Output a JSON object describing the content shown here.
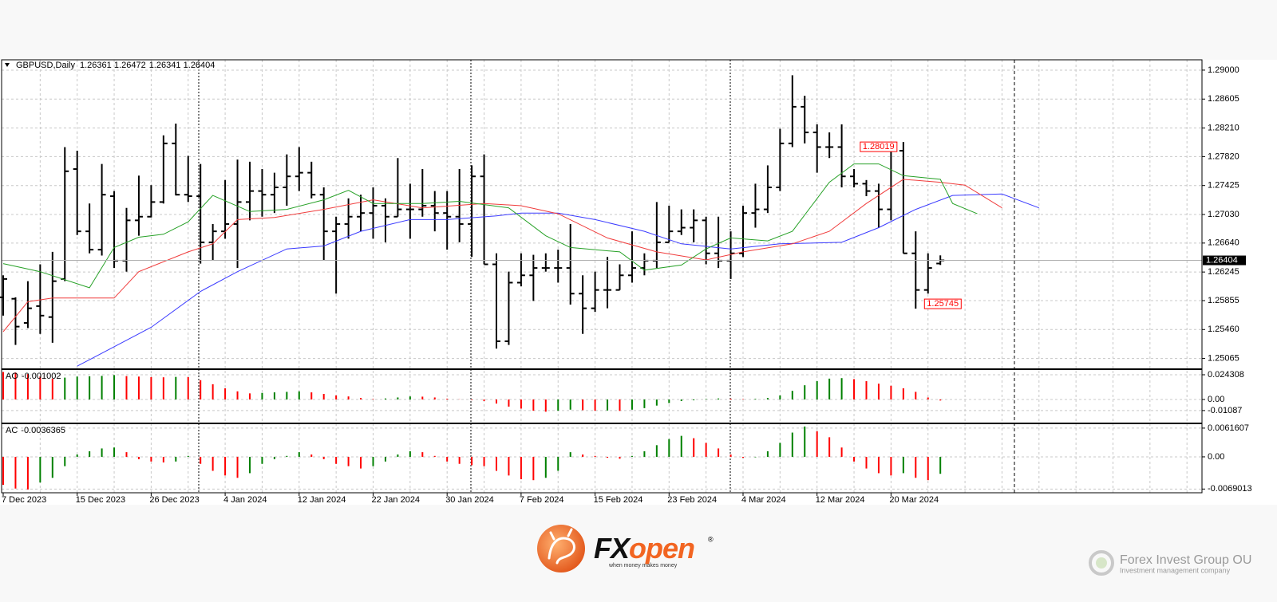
{
  "chart_data": [
    {
      "type": "ohlc",
      "title": "GBPUSD,Daily",
      "header_values": [
        1.26361,
        1.26472,
        1.26341,
        1.26404
      ],
      "color": "#000000",
      "categories": [
        "7 Dec 2023",
        null,
        null,
        null,
        null,
        null,
        "15 Dec 2023",
        null,
        null,
        null,
        null,
        null,
        "26 Dec 2023",
        null,
        null,
        null,
        null,
        null,
        "4 Jan 2024",
        null,
        null,
        null,
        null,
        null,
        "12 Jan 2024",
        null,
        null,
        null,
        null,
        null,
        "22 Jan 2024",
        null,
        null,
        null,
        null,
        null,
        "30 Jan 2024",
        null,
        null,
        null,
        null,
        null,
        "7 Feb 2024",
        null,
        null,
        null,
        null,
        null,
        "15 Feb 2024",
        null,
        null,
        null,
        null,
        null,
        "23 Feb 2024",
        null,
        null,
        null,
        null,
        null,
        "4 Mar 2024",
        null,
        null,
        null,
        null,
        null,
        "12 Mar 2024",
        null,
        null,
        null,
        null,
        null,
        "20 Mar 2024",
        null,
        null,
        null,
        null
      ],
      "open": [
        1.259,
        1.2588,
        1.2555,
        1.2578,
        1.2563,
        1.2615,
        1.2765,
        1.268,
        1.2655,
        1.2728,
        1.264,
        1.2695,
        1.27,
        1.272,
        1.28,
        1.273,
        1.2728,
        1.2665,
        1.268,
        1.269,
        1.272,
        1.2735,
        1.273,
        1.274,
        1.2755,
        1.276,
        1.273,
        1.268,
        1.269,
        1.27,
        1.2705,
        1.2715,
        1.27,
        1.271,
        1.271,
        1.2715,
        1.2705,
        1.27,
        1.269,
        1.2755,
        1.2635,
        1.253,
        1.261,
        1.262,
        1.263,
        1.263,
        1.263,
        1.2595,
        1.2575,
        1.26,
        1.26,
        1.262,
        1.263,
        1.264,
        1.2665,
        1.268,
        1.2685,
        1.2695,
        1.265,
        1.264,
        1.265,
        1.2705,
        1.271,
        1.274,
        1.28,
        1.285,
        1.2815,
        1.2795,
        1.2795,
        1.2755,
        1.2745,
        1.2735,
        1.271,
        1.279,
        1.265,
        1.26,
        1.26361
      ],
      "high": [
        1.262,
        1.259,
        1.2612,
        1.2635,
        1.2652,
        1.2795,
        1.279,
        1.2718,
        1.2772,
        1.2735,
        1.2712,
        1.2756,
        1.2743,
        1.2811,
        1.2827,
        1.2783,
        1.2772,
        1.269,
        1.275,
        1.2778,
        1.2775,
        1.2765,
        1.276,
        1.2785,
        1.2795,
        1.2775,
        1.274,
        1.27,
        1.2725,
        1.273,
        1.274,
        1.2725,
        1.278,
        1.2745,
        1.2765,
        1.2735,
        1.2735,
        1.2765,
        1.277,
        1.2785,
        1.265,
        1.2625,
        1.265,
        1.2648,
        1.265,
        1.2655,
        1.269,
        1.262,
        1.2625,
        1.2645,
        1.2635,
        1.268,
        1.265,
        1.272,
        1.2715,
        1.271,
        1.271,
        1.27,
        1.27,
        1.268,
        1.2715,
        1.2745,
        1.277,
        1.282,
        1.2893,
        1.2865,
        1.2826,
        1.2815,
        1.2826,
        1.2765,
        1.275,
        1.2745,
        1.28,
        1.28019,
        1.268,
        1.265,
        1.26472
      ],
      "low": [
        1.2565,
        1.2525,
        1.2548,
        1.254,
        1.2528,
        1.2612,
        1.2675,
        1.265,
        1.2647,
        1.263,
        1.2625,
        1.2674,
        1.2699,
        1.2718,
        1.2729,
        1.272,
        1.2636,
        1.264,
        1.267,
        1.263,
        1.2695,
        1.27,
        1.2705,
        1.2715,
        1.2735,
        1.2725,
        1.264,
        1.2595,
        1.267,
        1.268,
        1.267,
        1.2665,
        1.27,
        1.267,
        1.27,
        1.268,
        1.2655,
        1.2665,
        1.2645,
        1.2635,
        1.252,
        1.2525,
        1.2605,
        1.2585,
        1.2625,
        1.261,
        1.258,
        1.254,
        1.257,
        1.2575,
        1.26,
        1.261,
        1.262,
        1.263,
        1.2665,
        1.2675,
        1.2665,
        1.2635,
        1.263,
        1.2615,
        1.2645,
        1.2685,
        1.2705,
        1.2735,
        1.2795,
        1.28,
        1.276,
        1.278,
        1.274,
        1.274,
        1.2728,
        1.2685,
        1.2695,
        1.265,
        1.25745,
        1.2595,
        1.26341
      ],
      "close": [
        1.2615,
        1.255,
        1.2575,
        1.2565,
        1.2612,
        1.2762,
        1.268,
        1.2655,
        1.273,
        1.264,
        1.2695,
        1.27,
        1.272,
        1.28,
        1.273,
        1.2728,
        1.2665,
        1.268,
        1.269,
        1.272,
        1.2735,
        1.273,
        1.274,
        1.2755,
        1.276,
        1.273,
        1.268,
        1.269,
        1.27,
        1.2705,
        1.2715,
        1.27,
        1.271,
        1.271,
        1.2715,
        1.2705,
        1.27,
        1.269,
        1.2755,
        1.2635,
        1.253,
        1.261,
        1.262,
        1.263,
        1.263,
        1.263,
        1.2595,
        1.2575,
        1.26,
        1.26,
        1.262,
        1.263,
        1.264,
        1.2665,
        1.268,
        1.2685,
        1.2695,
        1.265,
        1.264,
        1.265,
        1.2705,
        1.271,
        1.274,
        1.28,
        1.285,
        1.2815,
        1.2795,
        1.2795,
        1.2755,
        1.2745,
        1.2735,
        1.271,
        1.279,
        1.265,
        1.26,
        1.263,
        1.26404
      ],
      "lines": [
        {
          "color": "#3b3bff",
          "x": [
            6,
            12,
            16,
            19,
            23,
            26,
            29,
            33,
            36,
            40,
            42,
            45,
            48,
            52,
            55,
            59,
            63,
            68,
            71,
            74,
            77,
            81,
            84
          ],
          "values": [
            1.2496,
            1.2549,
            1.2598,
            1.2625,
            1.2656,
            1.266,
            1.268,
            1.2696,
            1.2696,
            1.2701,
            1.2705,
            1.2705,
            1.2696,
            1.268,
            1.2663,
            1.2656,
            1.2663,
            1.2665,
            1.2685,
            1.271,
            1.2729,
            1.2731,
            1.2712
          ]
        },
        {
          "color": "#f03c3c",
          "x": [
            0,
            2,
            4,
            9,
            11,
            15,
            17,
            19,
            22,
            26,
            30,
            34,
            39,
            42,
            45,
            49,
            53,
            57,
            60,
            64,
            67,
            70,
            73,
            76,
            78,
            81
          ],
          "values": [
            1.2543,
            1.2584,
            1.2589,
            1.2589,
            1.2625,
            1.2652,
            1.2663,
            1.2696,
            1.2699,
            1.271,
            1.2723,
            1.2712,
            1.2718,
            1.2715,
            1.2704,
            1.2671,
            1.2652,
            1.2641,
            1.2652,
            1.2663,
            1.268,
            1.2718,
            1.2751,
            1.2747,
            1.2743,
            1.2712
          ]
        },
        {
          "color": "#27a127",
          "x": [
            0,
            3,
            7,
            9,
            11,
            13,
            15,
            17,
            20,
            23,
            26,
            28,
            30,
            34,
            37,
            41,
            44,
            46,
            50,
            52,
            55,
            57,
            59,
            62,
            64,
            67,
            69,
            71,
            73,
            76,
            77,
            79
          ],
          "values": [
            1.2636,
            1.2625,
            1.2603,
            1.2658,
            1.2672,
            1.2676,
            1.2693,
            1.2729,
            1.2707,
            1.271,
            1.2723,
            1.2736,
            1.2718,
            1.2718,
            1.2721,
            1.2712,
            1.2674,
            1.2658,
            1.2652,
            1.2627,
            1.2634,
            1.2656,
            1.2671,
            1.2667,
            1.268,
            1.2747,
            1.2772,
            1.2772,
            1.2756,
            1.2751,
            1.2718,
            1.2704
          ]
        }
      ],
      "ylim": [
        1.2493,
        1.2913
      ],
      "yticks": [
        {
          "value": 1.29,
          "label": "1.29000"
        },
        1.28605,
        {
          "value": 1.2821,
          "label": "1.28210"
        },
        {
          "value": 1.2782,
          "label": "1.27820"
        },
        1.27425,
        {
          "value": 1.2703,
          "label": "1.27030"
        },
        {
          "value": 1.2664,
          "label": "1.26640"
        },
        1.26245,
        1.25855,
        {
          "value": 1.2546,
          "label": "1.25460"
        },
        1.25065
      ],
      "grid": true,
      "current_price": 1.26404,
      "annotations": [
        1.28019,
        1.25745
      ],
      "annotation_color": "#ff0000"
    },
    {
      "type": "bar",
      "title": "AO",
      "title_value": -0.001002,
      "up_color": "#008000",
      "down_color": "#ff0000",
      "values": [
        0.027,
        0.0265,
        0.025,
        0.0225,
        0.0205,
        0.0215,
        0.0225,
        0.0228,
        0.0232,
        0.024,
        0.023,
        0.0225,
        0.022,
        0.0218,
        0.0222,
        0.022,
        0.019,
        0.015,
        0.011,
        0.008,
        0.006,
        0.0065,
        0.007,
        0.0075,
        0.008,
        0.007,
        0.0055,
        0.004,
        0.003,
        0.0015,
        0.0005,
        0.001,
        0.002,
        0.003,
        0.0028,
        0.002,
        0.0008,
        0.0002,
        -0.0005,
        -0.0015,
        -0.004,
        -0.007,
        -0.009,
        -0.011,
        -0.012,
        -0.011,
        -0.01,
        -0.0105,
        -0.011,
        -0.0108,
        -0.0112,
        -0.01,
        -0.0085,
        -0.006,
        -0.0035,
        -0.0015,
        -0.0008,
        0.0005,
        0.001,
        0.0008,
        0.0004,
        0.0006,
        0.0015,
        0.004,
        0.0085,
        0.014,
        0.018,
        0.0205,
        0.021,
        0.02,
        0.018,
        0.0155,
        0.0135,
        0.011,
        0.0075,
        0.002,
        -0.001002
      ],
      "ylim": [
        -0.0227,
        0.029
      ],
      "yticks": [
        0.024308,
        {
          "value": 0,
          "label": "0.00"
        },
        -0.01087
      ],
      "grid": true
    },
    {
      "type": "bar",
      "title": "AC",
      "title_value": -0.0036365,
      "up_color": "#008000",
      "down_color": "#ff0000",
      "values": [
        -0.006,
        -0.0068,
        -0.007,
        -0.0055,
        -0.0045,
        -0.002,
        0.0005,
        0.0012,
        0.0018,
        0.002,
        0.001,
        -0.0005,
        -0.001,
        -0.0012,
        -0.001,
        0.0002,
        -0.0015,
        -0.003,
        -0.004,
        -0.0045,
        -0.0035,
        -0.0015,
        -0.0005,
        0.0002,
        0.001,
        0.0005,
        -0.0005,
        -0.0015,
        -0.002,
        -0.0025,
        -0.002,
        -0.001,
        0.0005,
        0.0012,
        0.001,
        0.0002,
        -0.001,
        -0.0015,
        -0.0018,
        -0.002,
        -0.003,
        -0.004,
        -0.0048,
        -0.005,
        -0.0045,
        -0.003,
        0.001,
        0.0005,
        0.0002,
        -0.0002,
        -0.0004,
        0.0002,
        0.0012,
        0.0025,
        0.0038,
        0.0045,
        0.004,
        0.003,
        0.0018,
        0.0005,
        -0.0002,
        -0.0001,
        0.0012,
        0.003,
        0.0052,
        0.0065,
        0.0055,
        0.0042,
        0.002,
        -0.001,
        -0.0025,
        -0.0035,
        -0.004,
        -0.0035,
        -0.0045,
        -0.005,
        -0.0036365
      ],
      "ylim": [
        -0.0077,
        0.007
      ],
      "yticks": [
        0.0061607,
        {
          "value": 0,
          "label": "0.00"
        },
        -0.0069013
      ],
      "grid": true
    }
  ],
  "branding": {
    "logo_fx": "FX",
    "logo_open": "open",
    "registered": "®",
    "slogan": "when money makes money",
    "company": "Forex Invest Group OU",
    "company_tagline": "Investment management company"
  }
}
